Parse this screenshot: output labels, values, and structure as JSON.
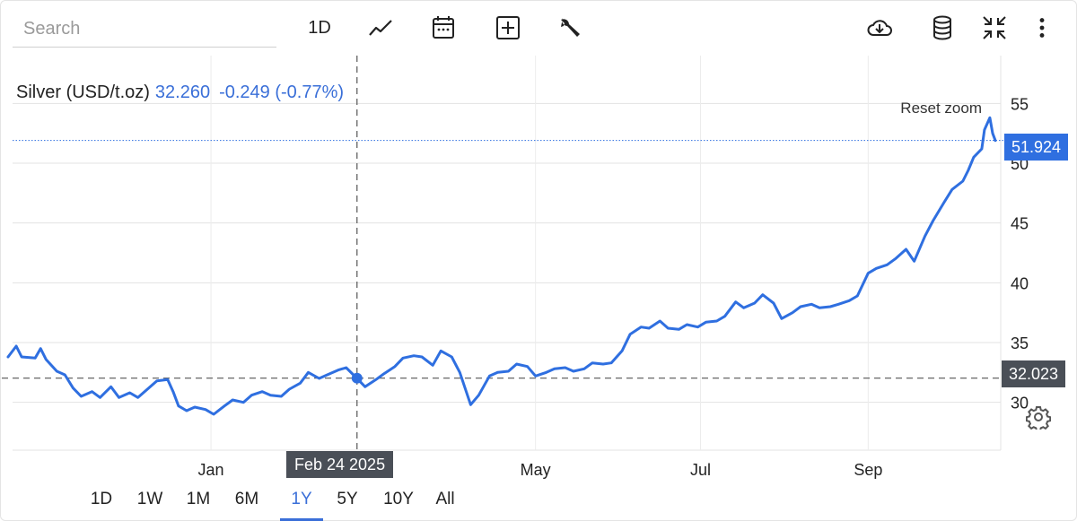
{
  "toolbar": {
    "search_placeholder": "Search",
    "interval_label": "1D",
    "icons": [
      "line-chart-icon",
      "calendar-icon",
      "add-box-icon",
      "wrench-icon",
      "cloud-download-icon",
      "database-icon",
      "collapse-icon",
      "more-vert-icon"
    ]
  },
  "legend": {
    "name": "Silver (USD/t.oz)",
    "value": "32.260",
    "change": "-0.249 (-0.77%)",
    "color": "#3a6fd8"
  },
  "reset_zoom": "Reset zoom",
  "last_price_tag": "51.924",
  "crosshair": {
    "date_label": "Feb 24 2025",
    "price_label": "32.023",
    "date": "2025-02-24",
    "value": 32.023
  },
  "ranges": {
    "items": [
      "1D",
      "1W",
      "1M",
      "6M",
      "1Y",
      "5Y",
      "10Y",
      "All"
    ],
    "active": "1Y"
  },
  "chart_data": {
    "type": "line",
    "title": "",
    "xlabel": "",
    "ylabel": "",
    "ylim": [
      26,
      59
    ],
    "xlim": [
      "2024-10-15",
      "2025-10-20"
    ],
    "yticks": [
      30,
      35,
      40,
      45,
      50,
      55
    ],
    "xticks": [
      {
        "date": "2025-01-01",
        "label": "Jan"
      },
      {
        "date": "2025-05-01",
        "label": "May"
      },
      {
        "date": "2025-07-01",
        "label": "Jul"
      },
      {
        "date": "2025-09-01",
        "label": "Sep"
      }
    ],
    "grid": true,
    "line_color": "#2f6fe0",
    "series": [
      {
        "name": "Silver (USD/t.oz)",
        "points": [
          [
            "2024-10-18",
            33.8
          ],
          [
            "2024-10-21",
            34.7
          ],
          [
            "2024-10-23",
            33.8
          ],
          [
            "2024-10-28",
            33.7
          ],
          [
            "2024-10-30",
            34.5
          ],
          [
            "2024-11-01",
            33.6
          ],
          [
            "2024-11-05",
            32.6
          ],
          [
            "2024-11-08",
            32.3
          ],
          [
            "2024-11-11",
            31.2
          ],
          [
            "2024-11-14",
            30.5
          ],
          [
            "2024-11-18",
            30.9
          ],
          [
            "2024-11-21",
            30.4
          ],
          [
            "2024-11-25",
            31.3
          ],
          [
            "2024-11-28",
            30.4
          ],
          [
            "2024-12-02",
            30.8
          ],
          [
            "2024-12-05",
            30.4
          ],
          [
            "2024-12-09",
            31.2
          ],
          [
            "2024-12-12",
            31.8
          ],
          [
            "2024-12-16",
            31.9
          ],
          [
            "2024-12-18",
            30.9
          ],
          [
            "2024-12-20",
            29.7
          ],
          [
            "2024-12-23",
            29.3
          ],
          [
            "2024-12-26",
            29.6
          ],
          [
            "2024-12-30",
            29.4
          ],
          [
            "2025-01-02",
            29.0
          ],
          [
            "2025-01-06",
            29.7
          ],
          [
            "2025-01-09",
            30.2
          ],
          [
            "2025-01-13",
            30.0
          ],
          [
            "2025-01-16",
            30.6
          ],
          [
            "2025-01-20",
            30.9
          ],
          [
            "2025-01-23",
            30.6
          ],
          [
            "2025-01-27",
            30.5
          ],
          [
            "2025-01-30",
            31.1
          ],
          [
            "2025-02-03",
            31.6
          ],
          [
            "2025-02-06",
            32.5
          ],
          [
            "2025-02-10",
            32.0
          ],
          [
            "2025-02-13",
            32.3
          ],
          [
            "2025-02-17",
            32.7
          ],
          [
            "2025-02-20",
            32.9
          ],
          [
            "2025-02-24",
            32.0
          ],
          [
            "2025-02-27",
            31.3
          ],
          [
            "2025-03-03",
            31.9
          ],
          [
            "2025-03-06",
            32.4
          ],
          [
            "2025-03-10",
            33.0
          ],
          [
            "2025-03-13",
            33.7
          ],
          [
            "2025-03-17",
            33.9
          ],
          [
            "2025-03-20",
            33.8
          ],
          [
            "2025-03-24",
            33.1
          ],
          [
            "2025-03-27",
            34.3
          ],
          [
            "2025-03-31",
            33.8
          ],
          [
            "2025-04-03",
            32.5
          ],
          [
            "2025-04-07",
            29.8
          ],
          [
            "2025-04-10",
            30.6
          ],
          [
            "2025-04-14",
            32.2
          ],
          [
            "2025-04-17",
            32.5
          ],
          [
            "2025-04-21",
            32.6
          ],
          [
            "2025-04-24",
            33.2
          ],
          [
            "2025-04-28",
            33.0
          ],
          [
            "2025-05-01",
            32.2
          ],
          [
            "2025-05-05",
            32.5
          ],
          [
            "2025-05-08",
            32.8
          ],
          [
            "2025-05-12",
            32.9
          ],
          [
            "2025-05-15",
            32.6
          ],
          [
            "2025-05-19",
            32.8
          ],
          [
            "2025-05-22",
            33.3
          ],
          [
            "2025-05-26",
            33.2
          ],
          [
            "2025-05-29",
            33.3
          ],
          [
            "2025-06-02",
            34.3
          ],
          [
            "2025-06-05",
            35.7
          ],
          [
            "2025-06-09",
            36.3
          ],
          [
            "2025-06-12",
            36.2
          ],
          [
            "2025-06-16",
            36.8
          ],
          [
            "2025-06-19",
            36.2
          ],
          [
            "2025-06-23",
            36.1
          ],
          [
            "2025-06-26",
            36.5
          ],
          [
            "2025-06-30",
            36.3
          ],
          [
            "2025-07-03",
            36.7
          ],
          [
            "2025-07-07",
            36.8
          ],
          [
            "2025-07-10",
            37.2
          ],
          [
            "2025-07-14",
            38.4
          ],
          [
            "2025-07-17",
            37.9
          ],
          [
            "2025-07-21",
            38.3
          ],
          [
            "2025-07-24",
            39.0
          ],
          [
            "2025-07-28",
            38.3
          ],
          [
            "2025-07-31",
            37.0
          ],
          [
            "2025-08-04",
            37.5
          ],
          [
            "2025-08-07",
            38.0
          ],
          [
            "2025-08-11",
            38.2
          ],
          [
            "2025-08-14",
            37.9
          ],
          [
            "2025-08-18",
            38.0
          ],
          [
            "2025-08-21",
            38.2
          ],
          [
            "2025-08-25",
            38.5
          ],
          [
            "2025-08-28",
            38.9
          ],
          [
            "2025-09-01",
            40.8
          ],
          [
            "2025-09-04",
            41.2
          ],
          [
            "2025-09-08",
            41.5
          ],
          [
            "2025-09-11",
            42.0
          ],
          [
            "2025-09-15",
            42.8
          ],
          [
            "2025-09-18",
            41.8
          ],
          [
            "2025-09-22",
            43.9
          ],
          [
            "2025-09-25",
            45.2
          ],
          [
            "2025-09-29",
            46.7
          ],
          [
            "2025-10-02",
            47.8
          ],
          [
            "2025-10-06",
            48.5
          ],
          [
            "2025-10-08",
            49.4
          ],
          [
            "2025-10-10",
            50.5
          ],
          [
            "2025-10-13",
            51.2
          ],
          [
            "2025-10-14",
            52.8
          ],
          [
            "2025-10-16",
            53.8
          ],
          [
            "2025-10-17",
            52.5
          ],
          [
            "2025-10-18",
            51.9
          ]
        ]
      }
    ],
    "crosshair_line": 32.023
  }
}
